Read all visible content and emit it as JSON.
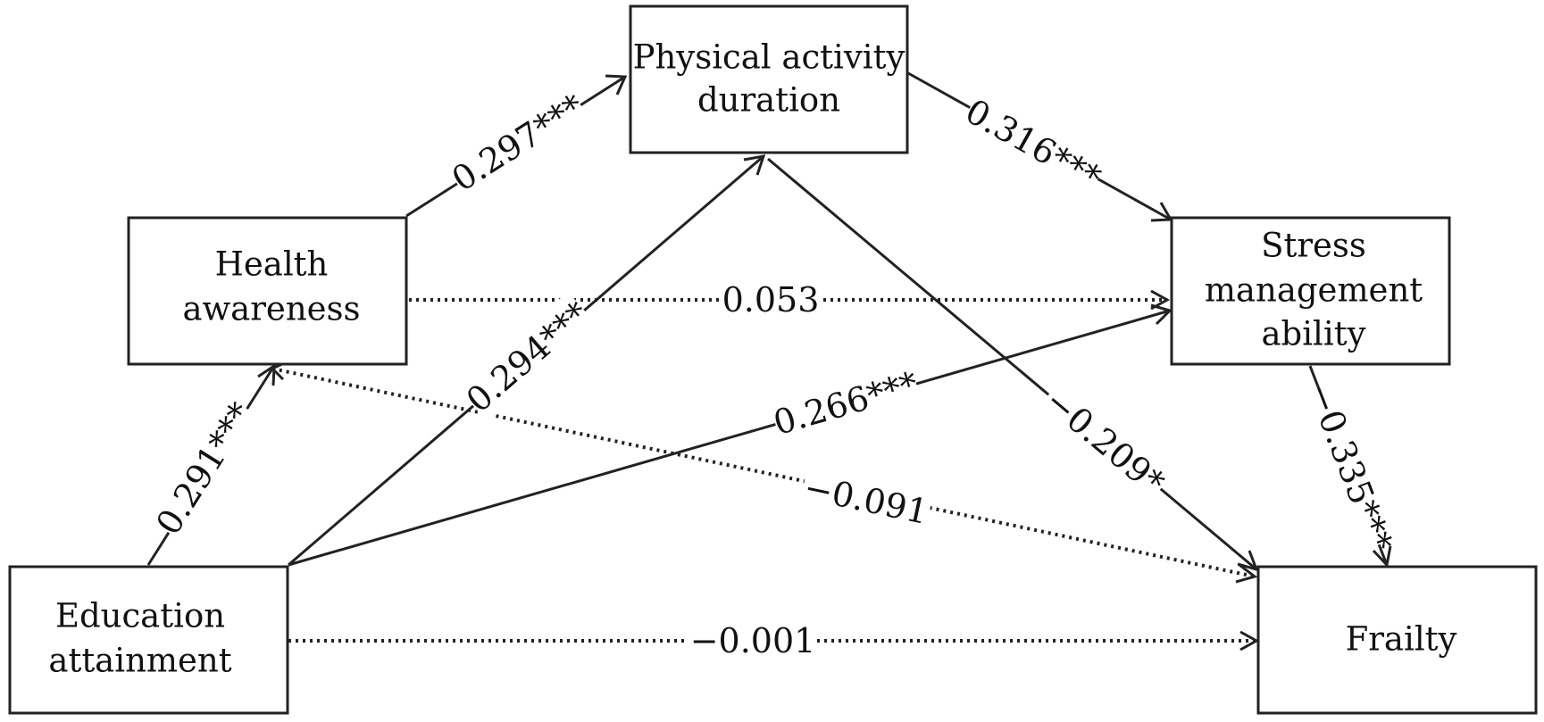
{
  "nodes": {
    "physical": {
      "lines": [
        "Physical activity",
        "duration"
      ]
    },
    "health": {
      "lines": [
        "Health",
        "awareness"
      ]
    },
    "stress": {
      "lines": [
        "Stress",
        "management",
        "ability"
      ]
    },
    "education": {
      "lines": [
        "Education",
        "attainment"
      ]
    },
    "frailty": {
      "lines": [
        "Frailty"
      ]
    }
  },
  "edges": {
    "health_to_physical": {
      "label": "0.297***",
      "style": "solid"
    },
    "physical_to_stress": {
      "label": "0.316***",
      "style": "solid"
    },
    "health_to_stress": {
      "label": "0.053",
      "style": "dotted"
    },
    "education_to_physical": {
      "label": "0.294***",
      "style": "solid"
    },
    "education_to_stress": {
      "label": "0.266***",
      "style": "solid"
    },
    "physical_to_frailty": {
      "label": "−0.209*",
      "style": "solid"
    },
    "stress_to_frailty": {
      "label": "−0.335***",
      "style": "solid"
    },
    "health_to_frailty": {
      "label": "−0.091",
      "style": "dotted"
    },
    "education_to_health": {
      "label": "0.291***",
      "style": "solid"
    },
    "education_to_frailty": {
      "label": "−0.001",
      "style": "dotted"
    }
  }
}
